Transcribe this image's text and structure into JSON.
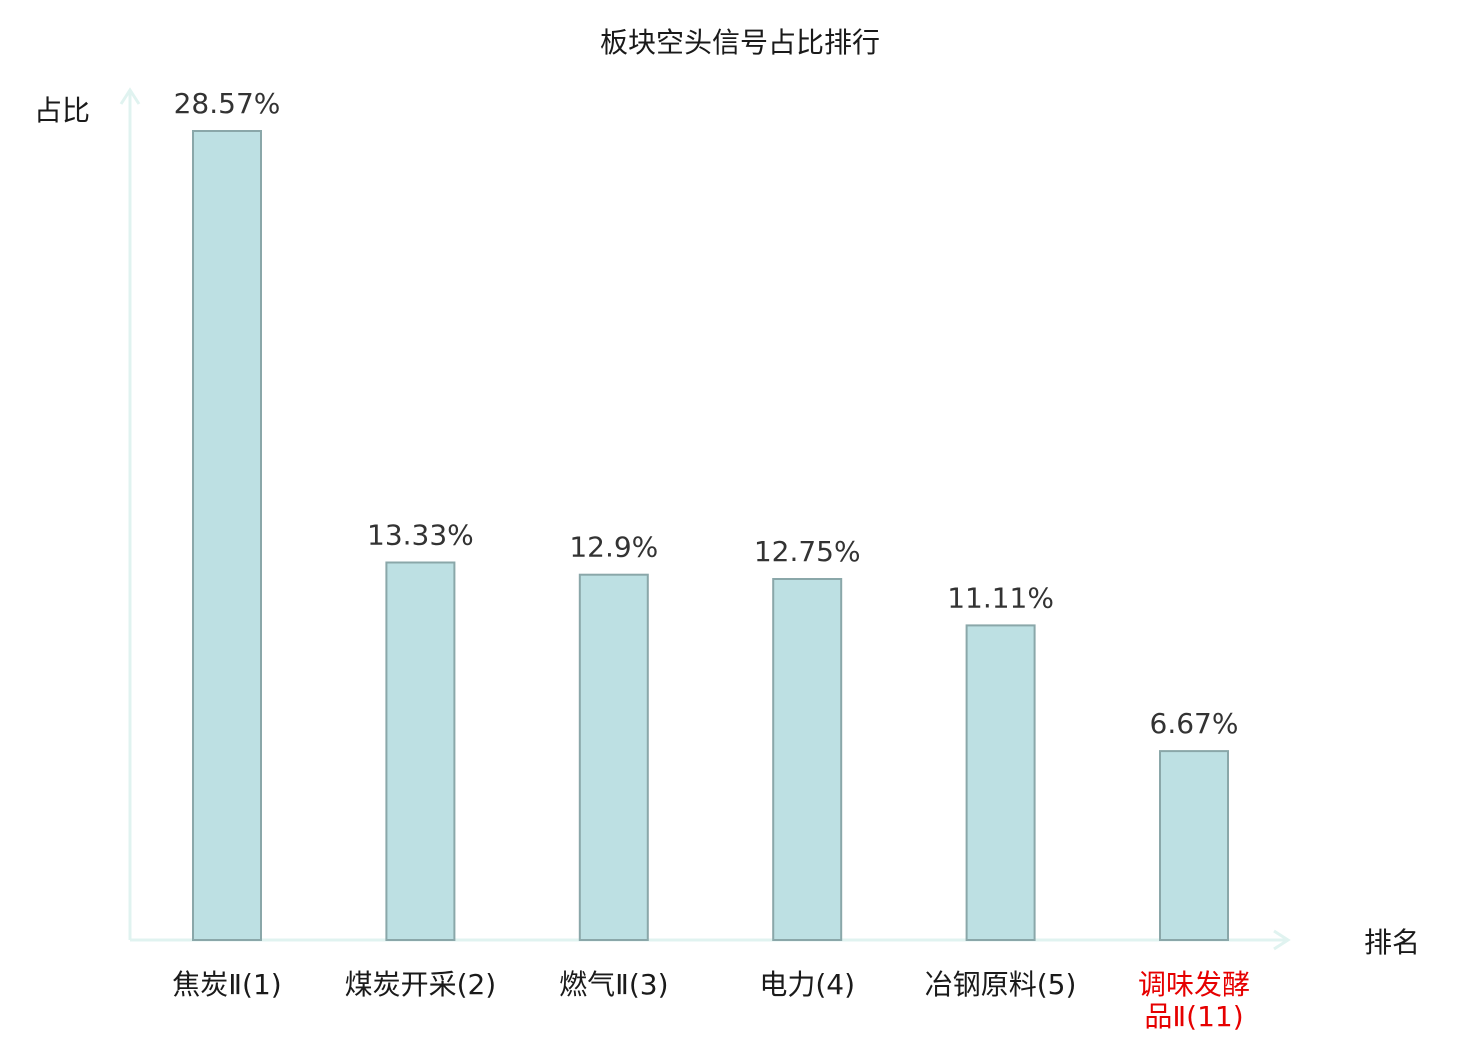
{
  "chart_data": {
    "type": "bar",
    "title": "板块空头信号占比排行",
    "ylabel": "占比",
    "xlabel": "排名",
    "value_suffix": "%",
    "ylim": [
      0,
      30
    ],
    "grid": false,
    "legend": "none",
    "categories": [
      {
        "lines": [
          "焦炭Ⅱ(1)"
        ],
        "highlight": false
      },
      {
        "lines": [
          "煤炭开采(2)"
        ],
        "highlight": false
      },
      {
        "lines": [
          "燃气Ⅱ(3)"
        ],
        "highlight": false
      },
      {
        "lines": [
          "电力(4)"
        ],
        "highlight": false
      },
      {
        "lines": [
          "冶钢原料(5)"
        ],
        "highlight": false
      },
      {
        "lines": [
          "调味发酵",
          "品Ⅱ(11)"
        ],
        "highlight": true
      }
    ],
    "values": [
      28.57,
      13.33,
      12.9,
      12.75,
      11.11,
      6.67
    ],
    "value_labels": [
      "28.57%",
      "13.33%",
      "12.9%",
      "12.75%",
      "11.11%",
      "6.67%"
    ]
  },
  "colors": {
    "bar_fill": "#bde0e3",
    "bar_stroke": "#8aa7a9",
    "axis": "#e0f3f0",
    "text": "#1a1a1a",
    "value_text": "#333333",
    "highlight_text": "#e60000"
  }
}
